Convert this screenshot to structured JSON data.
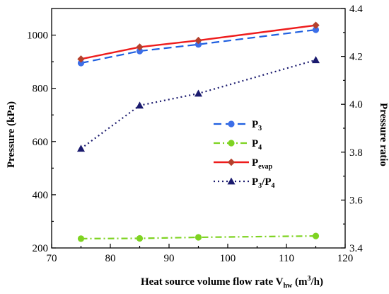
{
  "chart_data": {
    "type": "line",
    "xlabel": {
      "main": "Heat source volume flow rate ",
      "symbol": "V",
      "symbol_sub": "hw",
      "unit_pre": " (m",
      "unit_sup": "3",
      "unit_post": "/h)"
    },
    "ylabel_left": "Pressure (kPa)",
    "ylabel_right": "Pressure ratio",
    "xlim": [
      70,
      120
    ],
    "ylim_left": [
      200,
      1100
    ],
    "ylim_right": [
      3.4,
      4.4
    ],
    "x_ticks": [
      "70",
      "80",
      "90",
      "100",
      "110",
      "120"
    ],
    "y_left_ticks": [
      "200",
      "400",
      "600",
      "800",
      "1000"
    ],
    "y_right_ticks": [
      "3.4",
      "3.6",
      "3.8",
      "4.0",
      "4.2",
      "4.4"
    ],
    "legend_position": "center-right",
    "x": [
      75,
      85,
      95,
      115
    ],
    "series": [
      {
        "name": "P3",
        "name_base": "P",
        "name_sub": "3",
        "name_rest": "",
        "name_rest_sub": "",
        "axis": "left",
        "values": [
          895,
          940,
          965,
          1020
        ],
        "color": "#1f5fe0",
        "dash": "11,6",
        "marker": "circle",
        "marker_color": "#3c6ee8",
        "width": 2.2
      },
      {
        "name": "P4",
        "name_base": "P",
        "name_sub": "4",
        "name_rest": "",
        "name_rest_sub": "",
        "axis": "left",
        "values": [
          235,
          236,
          240,
          245
        ],
        "color": "#7ed321",
        "dash": "9,4,2,4",
        "marker": "circle",
        "marker_color": "#7ed321",
        "width": 2.2
      },
      {
        "name": "Pevap",
        "name_base": "P",
        "name_sub": "evap",
        "name_rest": "",
        "name_rest_sub": "",
        "axis": "left",
        "values": [
          910,
          955,
          980,
          1037
        ],
        "color": "#ee1c1c",
        "dash": "",
        "marker": "diamond",
        "marker_color": "#b5402c",
        "width": 2.4
      },
      {
        "name": "P3/P4",
        "name_base": "P",
        "name_sub": "3",
        "name_rest": "/P",
        "name_rest_sub": "4",
        "axis": "right",
        "values": [
          3.815,
          3.995,
          4.045,
          4.185
        ],
        "color": "#1a1a6e",
        "dash": "2,4",
        "marker": "triangle",
        "marker_color": "#1a1a6e",
        "width": 2.2
      }
    ]
  }
}
